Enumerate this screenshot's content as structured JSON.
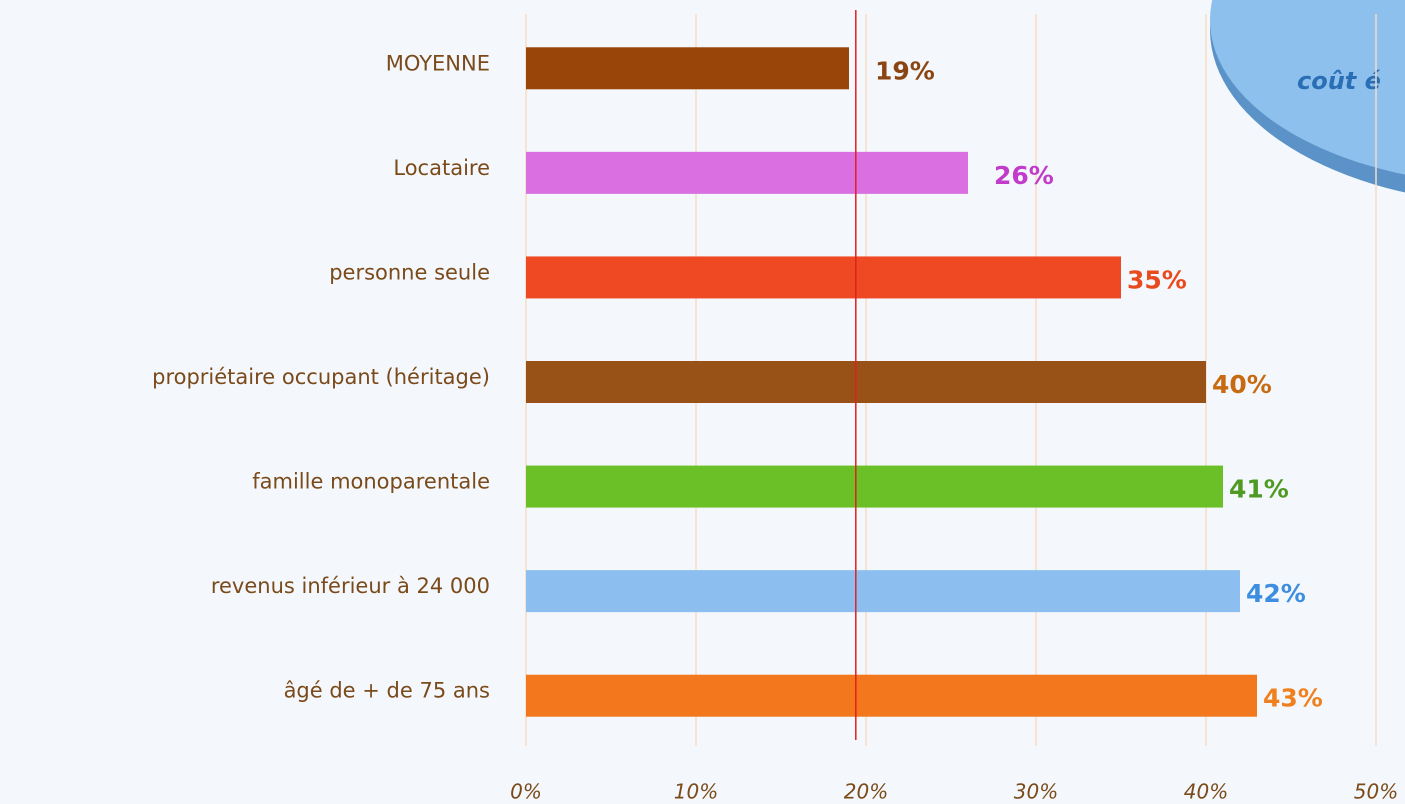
{
  "chart_data": {
    "type": "bar",
    "orientation": "horizontal",
    "categories": [
      "MOYENNE",
      "Locataire",
      "personne seule",
      "propriétaire occupant (héritage)",
      "famille monoparentale",
      "revenus inférieur à 24 000",
      "âgé de + de 75 ans"
    ],
    "values": [
      19,
      26,
      35,
      40,
      41,
      42,
      43
    ],
    "value_labels": [
      "19%",
      "26%",
      "35%",
      "40%",
      "41%",
      "42%",
      "43%"
    ],
    "colors": [
      "#994409",
      "#d96fe0",
      "#ef4923",
      "#985217",
      "#6cc027",
      "#8cbff0",
      "#f2771d"
    ],
    "label_colors": [
      "#8b4513",
      "#c23ccc",
      "#e84a1e",
      "#c86a12",
      "#4f9a22",
      "#3d8de0",
      "#f0801e"
    ],
    "xlim": [
      0,
      50
    ],
    "xticks": [
      {
        "value": 0,
        "label": "0%"
      },
      {
        "value": 10,
        "label": "10%"
      },
      {
        "value": 20,
        "label": "20%"
      },
      {
        "value": 30,
        "label": "30%"
      },
      {
        "value": 40,
        "label": "40%"
      },
      {
        "value": 50,
        "label": "50%"
      }
    ],
    "grid": true,
    "reference_line": 19.4,
    "annotation": "coût é"
  }
}
